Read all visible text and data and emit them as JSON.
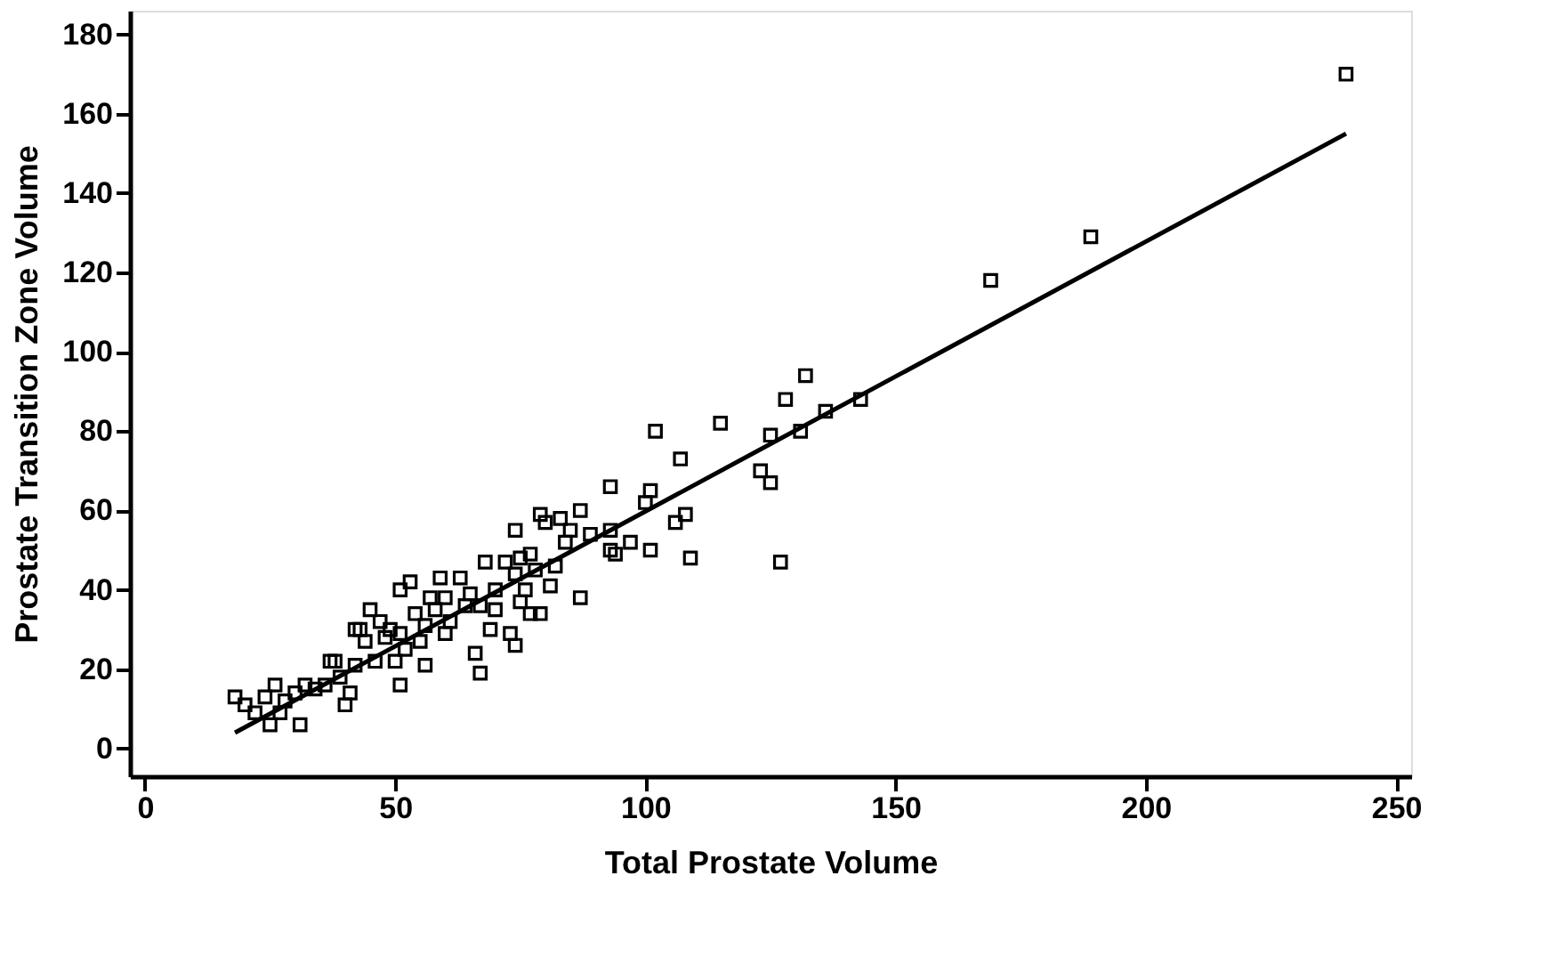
{
  "chart_data": {
    "type": "scatter",
    "xlabel": "Total Prostate Volume",
    "ylabel": "Prostate Transition Zone Volume",
    "xlim": [
      -3,
      253
    ],
    "ylim": [
      -7,
      186
    ],
    "xticks": [
      0,
      50,
      100,
      150,
      200,
      250
    ],
    "yticks": [
      0,
      20,
      40,
      60,
      80,
      100,
      120,
      140,
      160,
      180
    ],
    "grid": false,
    "series": [
      {
        "marker": "square",
        "color": "#000000",
        "x": [
          240,
          189,
          169,
          143,
          136,
          132,
          131,
          128,
          125,
          125,
          123,
          127,
          115,
          109,
          108,
          107,
          106,
          102,
          101,
          101,
          100,
          97,
          94,
          93,
          93,
          93,
          89,
          87,
          87,
          85,
          84,
          83,
          82,
          81,
          80,
          79,
          79,
          78,
          77,
          77,
          76,
          75,
          75,
          74,
          74,
          73,
          74,
          72,
          70,
          70,
          69,
          68,
          67,
          67,
          66,
          65,
          64,
          63,
          61,
          60,
          60,
          59,
          58,
          57,
          56,
          56,
          55,
          54,
          53,
          52,
          51,
          51,
          51,
          50,
          49,
          48,
          47,
          46,
          45,
          44,
          43,
          42,
          42,
          41,
          40,
          39,
          38,
          37,
          36,
          34,
          32,
          31,
          30,
          28,
          27,
          26,
          25,
          24,
          22,
          20,
          18
        ],
        "values": [
          170,
          129,
          118,
          88,
          85,
          94,
          80,
          88,
          79,
          67,
          70,
          47,
          82,
          48,
          59,
          73,
          57,
          80,
          65,
          50,
          62,
          52,
          49,
          66,
          55,
          50,
          54,
          38,
          60,
          55,
          52,
          58,
          46,
          41,
          57,
          59,
          34,
          45,
          49,
          34,
          40,
          48,
          37,
          55,
          44,
          29,
          26,
          47,
          40,
          35,
          30,
          47,
          36,
          19,
          24,
          39,
          36,
          43,
          32,
          38,
          29,
          43,
          35,
          38,
          31,
          21,
          27,
          34,
          42,
          25,
          29,
          40,
          16,
          22,
          30,
          28,
          32,
          22,
          35,
          27,
          30,
          30,
          21,
          14,
          11,
          18,
          22,
          22,
          16,
          15,
          16,
          6,
          14,
          12,
          9,
          16,
          6,
          13,
          9,
          11,
          13
        ]
      },
      {
        "type": "line",
        "color": "#000000",
        "line_style": "solid",
        "x": [
          18,
          240
        ],
        "values": [
          4,
          155
        ]
      }
    ]
  }
}
